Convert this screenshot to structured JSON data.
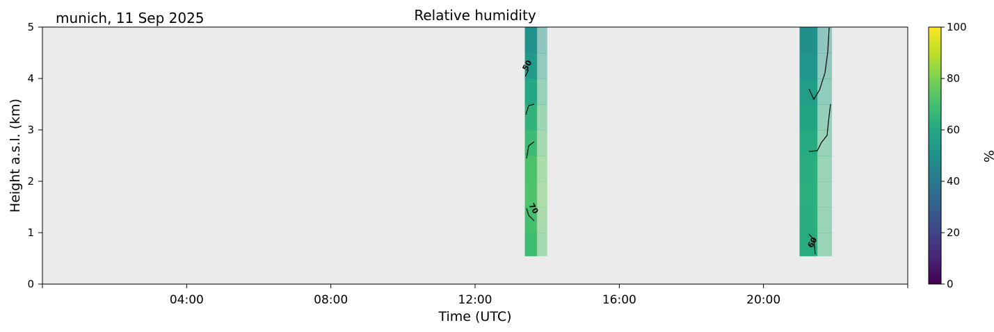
{
  "chart_data": {
    "type": "heatmap",
    "location_date": "munich, 11 Sep 2025",
    "title": "Relative humidity",
    "xlabel": "Time (UTC)",
    "ylabel": "Height a.s.l. (km)",
    "x_unit": "hours UTC",
    "xlim": [
      0,
      24
    ],
    "ylim": [
      0,
      5
    ],
    "x_ticks": [
      {
        "value": 4,
        "label": "04:00"
      },
      {
        "value": 8,
        "label": "08:00"
      },
      {
        "value": 12,
        "label": "12:00"
      },
      {
        "value": 16,
        "label": "16:00"
      },
      {
        "value": 20,
        "label": "20:00"
      }
    ],
    "y_ticks": [
      0,
      1,
      2,
      3,
      4,
      5
    ],
    "colorbar": {
      "label": "%",
      "range": [
        0,
        100
      ],
      "ticks": [
        0,
        20,
        40,
        60,
        80,
        100
      ],
      "colormap": "viridis"
    },
    "background_color": "#ebebeb",
    "series": [
      {
        "time_start": 13.38,
        "time_end": 14.0,
        "height_range": [
          0.55,
          5.0
        ],
        "heights": [
          0.55,
          1.0,
          1.5,
          2.0,
          2.5,
          3.0,
          3.5,
          4.0,
          4.5,
          5.0
        ],
        "rh_values": [
          68,
          69,
          71,
          73,
          70,
          66,
          63,
          57,
          51,
          49
        ]
      },
      {
        "time_start": 21.0,
        "time_end": 21.9,
        "height_range": [
          0.55,
          5.0
        ],
        "heights": [
          0.55,
          1.0,
          1.5,
          2.0,
          2.5,
          3.0,
          3.5,
          4.0,
          4.5,
          5.0
        ],
        "rh_values": [
          61,
          62,
          63,
          63,
          62,
          60,
          57,
          53,
          50,
          49
        ]
      }
    ],
    "contour_labels": [
      "50",
      "70",
      "60"
    ]
  }
}
